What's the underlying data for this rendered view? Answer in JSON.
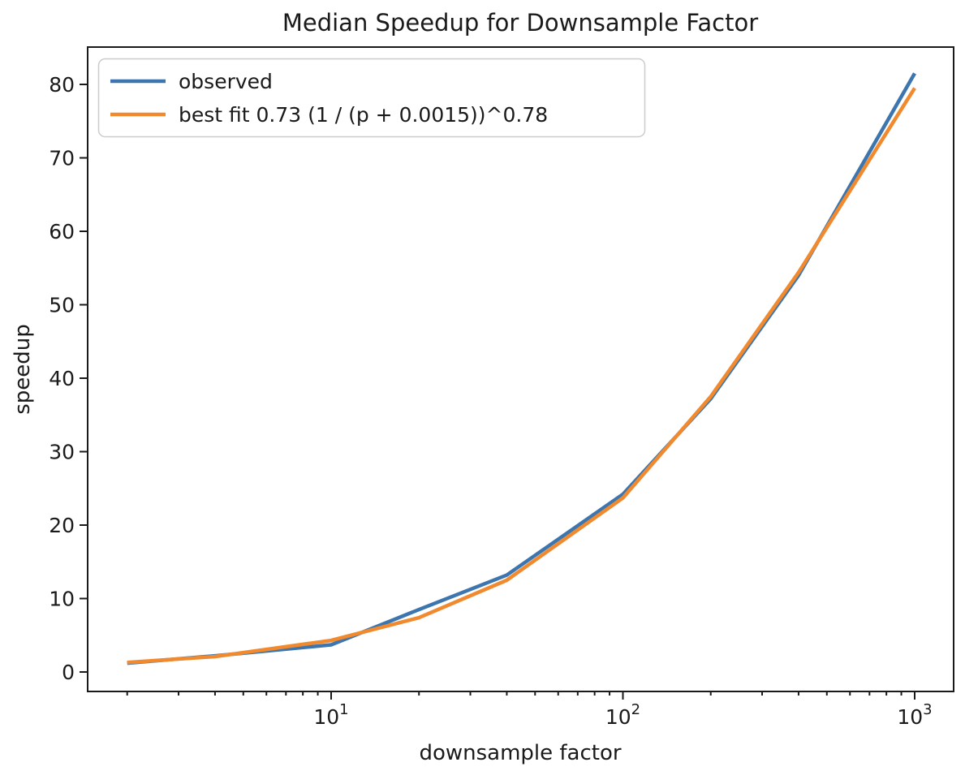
{
  "figure": {
    "background": "#ffffff",
    "text_color": "#1a1a1a",
    "spine_color": "#1a1a1a"
  },
  "chart_data": {
    "type": "line",
    "title": "Median Speedup for Downsample Factor",
    "xlabel": "downsample factor",
    "ylabel": "speedup",
    "x_scale": "log",
    "grid": false,
    "xlim": [
      1.45,
      1360
    ],
    "ylim": [
      -2.7,
      85.3
    ],
    "y_ticks": [
      0,
      10,
      20,
      30,
      40,
      50,
      60,
      70,
      80
    ],
    "x_major_ticks": [
      {
        "value": 10,
        "mantissa": "10",
        "exponent": "1"
      },
      {
        "value": 100,
        "mantissa": "10",
        "exponent": "2"
      },
      {
        "value": 1000,
        "mantissa": "10",
        "exponent": "3"
      }
    ],
    "legend": {
      "position": "upper left",
      "entries": [
        "observed",
        "best fit 0.73 (1 / (p + 0.0015))^0.78"
      ]
    },
    "x": [
      2,
      4,
      10,
      20,
      40,
      100,
      200,
      400,
      1000
    ],
    "series": [
      {
        "name": "observed",
        "color": "#3d76ae",
        "values": [
          1.2,
          2.2,
          3.7,
          8.5,
          13.2,
          24.2,
          37.2,
          54.0,
          81.5
        ]
      },
      {
        "name": "best fit 0.73 (1 / (p + 0.0015))^0.78",
        "color": "#f18a2e",
        "values": [
          1.3,
          2.1,
          4.3,
          7.4,
          12.5,
          23.7,
          37.5,
          54.4,
          79.5
        ]
      }
    ]
  }
}
